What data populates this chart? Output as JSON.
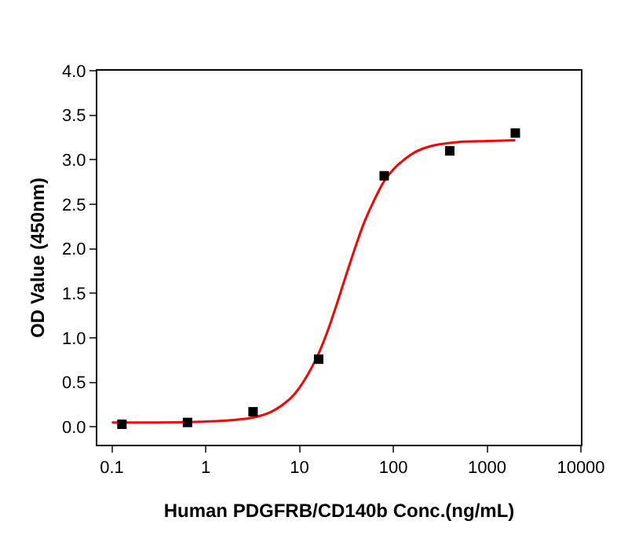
{
  "chart_data": {
    "type": "scatter",
    "xlabel": "Human PDGFRB/CD140b Conc.(ng/mL)",
    "ylabel": "OD Value (450nm)",
    "log": "x",
    "xlim": [
      0.07,
      10000
    ],
    "xticks": [
      0.1,
      1,
      10,
      100,
      1000,
      10000
    ],
    "ylim": [
      -0.2,
      4.0
    ],
    "yticks": [
      {
        "value": 0,
        "label": "0.0"
      },
      {
        "value": 0.5,
        "label": "0.5"
      },
      {
        "value": 1,
        "label": "1.0"
      },
      {
        "value": 1.5,
        "label": "1.5"
      },
      {
        "value": 2,
        "label": "2.0"
      },
      {
        "value": 2.5,
        "label": "2.5"
      },
      {
        "value": 3,
        "label": "3.0"
      },
      {
        "value": 3.5,
        "label": "3.5"
      },
      {
        "value": 4,
        "label": "4.0"
      }
    ],
    "series": [
      {
        "type": "line",
        "color": "#ff0000",
        "x": [
          0.1,
          1,
          3,
          5,
          8,
          10,
          15,
          20,
          25,
          30,
          40,
          50,
          70,
          80,
          100,
          150,
          200,
          300,
          500,
          1000,
          2000
        ],
        "values": [
          0.05,
          0.06,
          0.1,
          0.17,
          0.32,
          0.44,
          0.76,
          1.08,
          1.38,
          1.64,
          2.04,
          2.32,
          2.65,
          2.76,
          2.89,
          3.05,
          3.12,
          3.17,
          3.2,
          3.21,
          3.22
        ]
      },
      {
        "marker": "square",
        "color": "#000000",
        "x": [
          0.128,
          0.64,
          3.2,
          16,
          80,
          400,
          2000
        ],
        "values": [
          0.03,
          0.05,
          0.17,
          0.76,
          2.82,
          3.1,
          3.3
        ]
      }
    ]
  }
}
